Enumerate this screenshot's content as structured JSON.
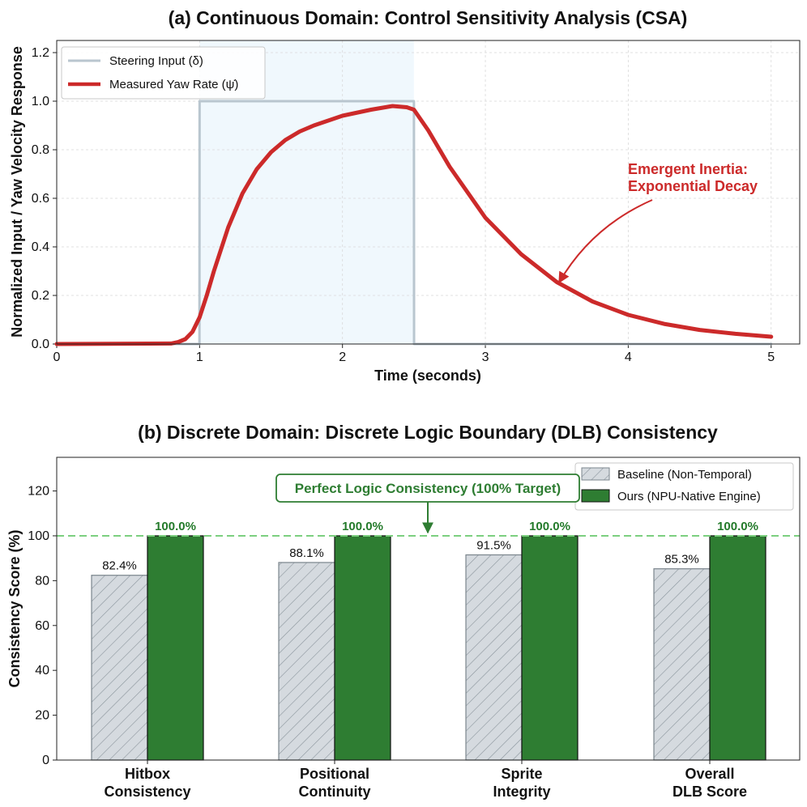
{
  "chart_data": [
    {
      "type": "line",
      "title": "(a) Continuous Domain: Control Sensitivity Analysis (CSA)",
      "xlabel": "Time (seconds)",
      "ylabel": "Normalized Input / Yaw Velocity Response",
      "xlim": [
        0,
        5.2
      ],
      "ylim": [
        0,
        1.25
      ],
      "xticks": [
        0,
        1,
        2,
        3,
        4,
        5
      ],
      "yticks": [
        0.0,
        0.2,
        0.4,
        0.6,
        0.8,
        1.0,
        1.2
      ],
      "grid": true,
      "legend_position": "top-left",
      "shaded_region": {
        "x": [
          1.0,
          2.5
        ],
        "color": "#e3f2fb"
      },
      "series": [
        {
          "name": "Steering Input (δ)",
          "color": "#b9c6cf",
          "x": [
            0,
            0.999,
            1.0,
            2.5,
            2.501,
            5
          ],
          "y": [
            0,
            0,
            1.0,
            1.0,
            0,
            0
          ]
        },
        {
          "name": "Measured Yaw Rate (ψ̇)",
          "color": "#cc2a2a",
          "x": [
            0.0,
            0.8,
            0.85,
            0.9,
            0.95,
            1.0,
            1.05,
            1.1,
            1.2,
            1.3,
            1.4,
            1.5,
            1.6,
            1.7,
            1.8,
            2.0,
            2.2,
            2.35,
            2.45,
            2.5,
            2.6,
            2.75,
            3.0,
            3.25,
            3.5,
            3.75,
            4.0,
            4.25,
            4.5,
            4.75,
            5.0
          ],
          "y": [
            0.0,
            0.002,
            0.008,
            0.02,
            0.05,
            0.11,
            0.2,
            0.3,
            0.48,
            0.62,
            0.72,
            0.79,
            0.84,
            0.875,
            0.9,
            0.94,
            0.965,
            0.98,
            0.975,
            0.965,
            0.88,
            0.73,
            0.52,
            0.37,
            0.255,
            0.175,
            0.12,
            0.083,
            0.058,
            0.042,
            0.03
          ]
        }
      ],
      "annotation": {
        "text_line1": "Emergent Inertia:",
        "text_line2": "Exponential Decay",
        "arrow_to": [
          3.5,
          0.24
        ],
        "text_at": [
          4.0,
          0.68
        ],
        "color": "#cc2a2a"
      }
    },
    {
      "type": "bar",
      "title": "(b) Discrete Domain: Discrete Logic Boundary (DLB) Consistency",
      "ylabel": "Consistency Score (%)",
      "ylim": [
        0,
        135
      ],
      "yticks": [
        0,
        20,
        40,
        60,
        80,
        100,
        120
      ],
      "categories": [
        {
          "line1": "Hitbox",
          "line2": "Consistency"
        },
        {
          "line1": "Positional",
          "line2": "Continuity"
        },
        {
          "line1": "Sprite",
          "line2": "Integrity"
        },
        {
          "line1": "Overall",
          "line2": "DLB Score"
        }
      ],
      "legend_position": "top-right",
      "series": [
        {
          "name": "Baseline (Non-Temporal)",
          "color": "#d5dadf",
          "hatch": true,
          "values": [
            82.4,
            88.1,
            91.5,
            85.3
          ],
          "labels": [
            "82.4%",
            "88.1%",
            "91.5%",
            "85.3%"
          ]
        },
        {
          "name": "Ours (NPU-Native Engine)",
          "color": "#2e7d32",
          "hatch": false,
          "values": [
            100.0,
            100.0,
            100.0,
            100.0
          ],
          "labels": [
            "100.0%",
            "100.0%",
            "100.0%",
            "100.0%"
          ]
        }
      ],
      "reference_line": {
        "y": 100,
        "color": "#7ccf7f"
      },
      "annotation": {
        "text": "Perfect Logic Consistency (100% Target)",
        "arrow_to": 100,
        "color": "#2e7d32"
      }
    }
  ]
}
